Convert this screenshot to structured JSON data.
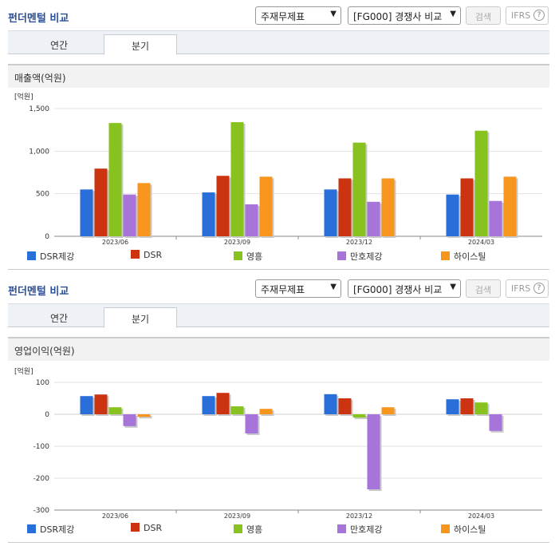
{
  "panels": [
    {
      "title": "펀더멘털 비교",
      "select1": "주재무제표",
      "select2": "[FG000] 경쟁사 비교",
      "search_label": "검색",
      "ifrs_label": "IFRS",
      "tabs": [
        "연간",
        "분기"
      ],
      "active_tab": 1,
      "metric_label": "매출액(억원)",
      "unit_label": "[억원]"
    },
    {
      "title": "펀더멘털 비교",
      "select1": "주재무제표",
      "select2": "[FG000] 경쟁사 비교",
      "search_label": "검색",
      "ifrs_label": "IFRS",
      "tabs": [
        "연간",
        "분기"
      ],
      "active_tab": 1,
      "metric_label": "영업이익(억원)",
      "unit_label": "[억원]"
    }
  ],
  "legend": [
    {
      "name": "DSR제강",
      "color": "#2a6ed9"
    },
    {
      "name": "DSR",
      "color": "#cc3311"
    },
    {
      "name": "영흥",
      "color": "#88c21e"
    },
    {
      "name": "만호제강",
      "color": "#a775d9"
    },
    {
      "name": "하이스틸",
      "color": "#f7951d"
    }
  ],
  "chart_data": [
    {
      "type": "bar",
      "categories": [
        "2023/06",
        "2023/09",
        "2023/12",
        "2024/03"
      ],
      "ylim": [
        0,
        1500
      ],
      "yticks": [
        0,
        500,
        1000,
        1500
      ],
      "ytick_labels": [
        "0",
        "500",
        "1,000",
        "1,500"
      ],
      "ylabel": "[억원]",
      "series": [
        {
          "name": "DSR제강",
          "values": [
            550,
            515,
            550,
            490
          ]
        },
        {
          "name": "DSR",
          "values": [
            795,
            710,
            680,
            680
          ]
        },
        {
          "name": "영흥",
          "values": [
            1330,
            1340,
            1100,
            1240
          ]
        },
        {
          "name": "만호제강",
          "values": [
            490,
            375,
            405,
            415
          ]
        },
        {
          "name": "하이스틸",
          "values": [
            625,
            700,
            680,
            700
          ]
        }
      ]
    },
    {
      "type": "bar",
      "categories": [
        "2023/06",
        "2023/09",
        "2023/12",
        "2024/03"
      ],
      "ylim": [
        -300,
        100
      ],
      "yticks": [
        -300,
        -200,
        -100,
        0,
        100
      ],
      "ytick_labels": [
        "-300",
        "-200",
        "-100",
        "0",
        "100"
      ],
      "ylabel": "[억원]",
      "series": [
        {
          "name": "DSR제강",
          "values": [
            57,
            57,
            63,
            47
          ]
        },
        {
          "name": "DSR",
          "values": [
            62,
            67,
            50,
            50
          ]
        },
        {
          "name": "영흥",
          "values": [
            22,
            25,
            -10,
            37
          ]
        },
        {
          "name": "만호제강",
          "values": [
            -37,
            -60,
            -235,
            -52
          ]
        },
        {
          "name": "하이스틸",
          "values": [
            -8,
            17,
            22,
            0
          ]
        }
      ]
    }
  ]
}
